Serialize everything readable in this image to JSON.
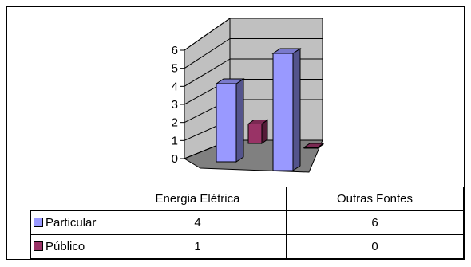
{
  "chart_data": {
    "type": "bar",
    "categories": [
      "Energia Elétrica",
      "Outras Fontes"
    ],
    "series": [
      {
        "name": "Particular",
        "values": [
          4,
          6
        ],
        "color": "#9999ff"
      },
      {
        "name": "Público",
        "values": [
          1,
          0
        ],
        "color": "#993366"
      }
    ],
    "yticks": [
      "0",
      "1",
      "2",
      "3",
      "4",
      "5",
      "6"
    ],
    "ylim": [
      0,
      6
    ],
    "grid": true,
    "chart_style": "3d-column",
    "floor_color": "#808080",
    "wall_color": "#c0c0c0",
    "legend": "data-table"
  }
}
